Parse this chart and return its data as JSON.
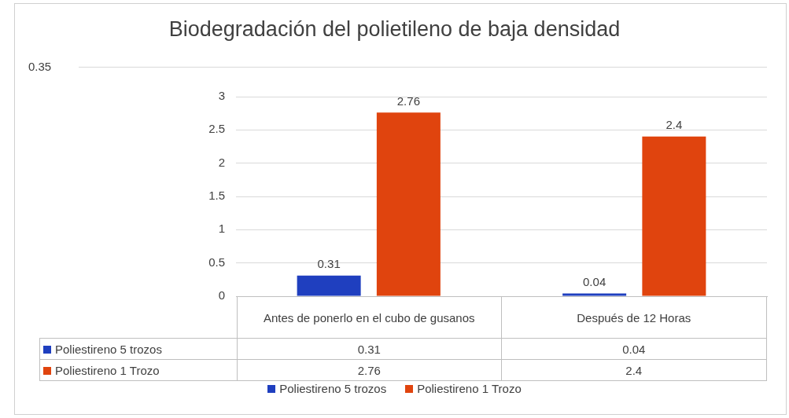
{
  "chart_data": {
    "type": "bar",
    "title": "Biodegradación del polietileno de baja densidad",
    "categories": [
      "Antes de ponerlo en el cubo de gusanos",
      "Después de 12 Horas"
    ],
    "series": [
      {
        "name": "Poliestireno 5 trozos",
        "color": "#1f3fbf",
        "values": [
          0.31,
          0.04
        ],
        "value_labels": [
          "0.31",
          "0.04"
        ]
      },
      {
        "name": "Poliestireno 1 Trozo",
        "color": "#e0440e",
        "values": [
          2.76,
          2.4
        ],
        "value_labels": [
          "2.76",
          "2.4"
        ]
      }
    ],
    "ylim": [
      0,
      3
    ],
    "yticks": [
      0,
      0.5,
      1,
      1.5,
      2,
      2.5,
      3
    ],
    "grid": "y",
    "legend": "bottom",
    "annotations": [
      "0.35"
    ]
  }
}
